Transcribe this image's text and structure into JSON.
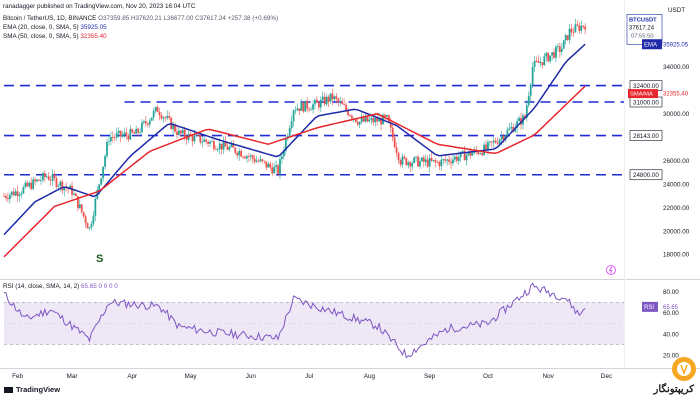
{
  "header": {
    "published_line": "ranadagger published on TradingView.com, Nov 20, 2023 16:04 UTC",
    "symbol_line": "Bitcoin / TetherUS, 1D, BINANCE",
    "ohlc": "O37359.85 H37620.21 L36677.00 C37617.24 +257.38 (+0.69%)",
    "ema_label": "EMA (20, close, 0, SMA, 5)",
    "ema_value": "35925.05",
    "sma_label": "SMA (50, close, 0, SMA, 5)",
    "sma_value": "32355.40",
    "rsi_label": "RSI (14, close, SMA, 14, 2)",
    "rsi_values": "65.65  0  0  0  0"
  },
  "axis": {
    "currency": "USDT",
    "y_ticks": [
      "34000.00",
      "30000.00",
      "26000.00",
      "24000.00",
      "22000.00",
      "20000.00",
      "18000.00"
    ],
    "x_ticks": [
      "Feb",
      "Mar",
      "Apr",
      "May",
      "Jun",
      "Jul",
      "Aug",
      "Sep",
      "Oct",
      "Nov",
      "Dec"
    ],
    "rsi_ticks": [
      "80.00",
      "60.00",
      "40.00",
      "20.00"
    ]
  },
  "badges": {
    "symbol": "BTCUSDT",
    "price": "37617.24",
    "countdown": "07:55:50",
    "ema": "EMA",
    "ema_value": "35925.05",
    "sma": "SMA/MA",
    "sma_value": "32355.40",
    "rsi": "RSI",
    "rsi_value": "65.65"
  },
  "levels": [
    "32400.00",
    "31000.00",
    "28143.00",
    "24800.00"
  ],
  "annotations": {
    "pattern_label": "S"
  },
  "branding": {
    "tradingview": "TradingView",
    "watermark": "کریپتونگار"
  },
  "colors": {
    "up": "#26a69a",
    "down": "#ef5350",
    "ema": "#1e2aa8",
    "sma": "#e8262d",
    "level": "#1f2bd6",
    "rsi_line": "#7e57c2",
    "rsi_band": "#ede7f6",
    "badge_bg": "#1e2aa8",
    "sma_badge_bg": "#e8262d",
    "pattern": "#1b5e20"
  },
  "chart_data": {
    "type": "candlestick",
    "title": "Bitcoin / TetherUS, 1D, BINANCE",
    "x_range": [
      "2023-01-25",
      "2023-12-10"
    ],
    "ylim": [
      16000,
      38500
    ],
    "price_series": {
      "name": "BTCUSDT daily close (approximate)",
      "anchors": [
        {
          "date": "2023-01-25",
          "price": 23000
        },
        {
          "date": "2023-02-03",
          "price": 23500
        },
        {
          "date": "2023-02-16",
          "price": 24700
        },
        {
          "date": "2023-03-01",
          "price": 23400
        },
        {
          "date": "2023-03-10",
          "price": 20200
        },
        {
          "date": "2023-03-20",
          "price": 28000
        },
        {
          "date": "2023-04-03",
          "price": 28300
        },
        {
          "date": "2023-04-14",
          "price": 30400
        },
        {
          "date": "2023-04-25",
          "price": 28300
        },
        {
          "date": "2023-05-10",
          "price": 27600
        },
        {
          "date": "2023-05-26",
          "price": 26800
        },
        {
          "date": "2023-06-15",
          "price": 25100
        },
        {
          "date": "2023-06-23",
          "price": 30500
        },
        {
          "date": "2023-07-05",
          "price": 30800
        },
        {
          "date": "2023-07-13",
          "price": 31400
        },
        {
          "date": "2023-07-27",
          "price": 29300
        },
        {
          "date": "2023-08-10",
          "price": 29500
        },
        {
          "date": "2023-08-17",
          "price": 26000
        },
        {
          "date": "2023-09-05",
          "price": 25800
        },
        {
          "date": "2023-09-30",
          "price": 27000
        },
        {
          "date": "2023-10-20",
          "price": 29700
        },
        {
          "date": "2023-10-24",
          "price": 34000
        },
        {
          "date": "2023-11-08",
          "price": 35600
        },
        {
          "date": "2023-11-12",
          "price": 37000
        },
        {
          "date": "2023-11-20",
          "price": 37617
        }
      ]
    },
    "ema20": {
      "name": "EMA (20)",
      "anchors": [
        {
          "date": "2023-01-25",
          "price": 19700
        },
        {
          "date": "2023-02-10",
          "price": 22500
        },
        {
          "date": "2023-02-25",
          "price": 23800
        },
        {
          "date": "2023-03-13",
          "price": 22900
        },
        {
          "date": "2023-03-31",
          "price": 26400
        },
        {
          "date": "2023-04-20",
          "price": 29200
        },
        {
          "date": "2023-05-15",
          "price": 27800
        },
        {
          "date": "2023-06-15",
          "price": 26300
        },
        {
          "date": "2023-07-05",
          "price": 29800
        },
        {
          "date": "2023-07-25",
          "price": 30400
        },
        {
          "date": "2023-08-15",
          "price": 29000
        },
        {
          "date": "2023-09-05",
          "price": 26400
        },
        {
          "date": "2023-10-05",
          "price": 27000
        },
        {
          "date": "2023-10-25",
          "price": 30500
        },
        {
          "date": "2023-11-10",
          "price": 34400
        },
        {
          "date": "2023-11-20",
          "price": 35925
        }
      ]
    },
    "sma50": {
      "name": "SMA (50)",
      "anchors": [
        {
          "date": "2023-01-25",
          "price": 17800
        },
        {
          "date": "2023-02-20",
          "price": 22100
        },
        {
          "date": "2023-03-15",
          "price": 23400
        },
        {
          "date": "2023-04-10",
          "price": 26800
        },
        {
          "date": "2023-05-10",
          "price": 28700
        },
        {
          "date": "2023-06-10",
          "price": 27400
        },
        {
          "date": "2023-07-05",
          "price": 28800
        },
        {
          "date": "2023-08-05",
          "price": 30000
        },
        {
          "date": "2023-09-05",
          "price": 27400
        },
        {
          "date": "2023-10-05",
          "price": 26600
        },
        {
          "date": "2023-10-25",
          "price": 28200
        },
        {
          "date": "2023-11-20",
          "price": 32355
        }
      ]
    },
    "horizontal_levels": [
      {
        "label": "32400.00",
        "price": 32400,
        "from": "2023-01-25"
      },
      {
        "label": "31000.00",
        "price": 31000,
        "from": "2023-03-28"
      },
      {
        "label": "28143.00",
        "price": 28143,
        "from": "2023-01-25"
      },
      {
        "label": "24800.00",
        "price": 24800,
        "from": "2023-01-25"
      }
    ],
    "rsi": {
      "name": "RSI (14)",
      "ylim": [
        10,
        90
      ],
      "band": [
        30,
        70
      ],
      "anchors": [
        {
          "date": "2023-01-25",
          "value": 78
        },
        {
          "date": "2023-02-05",
          "value": 54
        },
        {
          "date": "2023-02-18",
          "value": 63
        },
        {
          "date": "2023-03-10",
          "value": 35
        },
        {
          "date": "2023-03-20",
          "value": 70
        },
        {
          "date": "2023-04-15",
          "value": 66
        },
        {
          "date": "2023-04-25",
          "value": 47
        },
        {
          "date": "2023-05-12",
          "value": 42
        },
        {
          "date": "2023-06-15",
          "value": 36
        },
        {
          "date": "2023-06-23",
          "value": 73
        },
        {
          "date": "2023-07-15",
          "value": 60
        },
        {
          "date": "2023-08-05",
          "value": 48
        },
        {
          "date": "2023-08-20",
          "value": 20
        },
        {
          "date": "2023-09-10",
          "value": 45
        },
        {
          "date": "2023-10-01",
          "value": 50
        },
        {
          "date": "2023-10-24",
          "value": 85
        },
        {
          "date": "2023-11-10",
          "value": 74
        },
        {
          "date": "2023-11-17",
          "value": 58
        },
        {
          "date": "2023-11-20",
          "value": 65.65
        }
      ]
    }
  }
}
